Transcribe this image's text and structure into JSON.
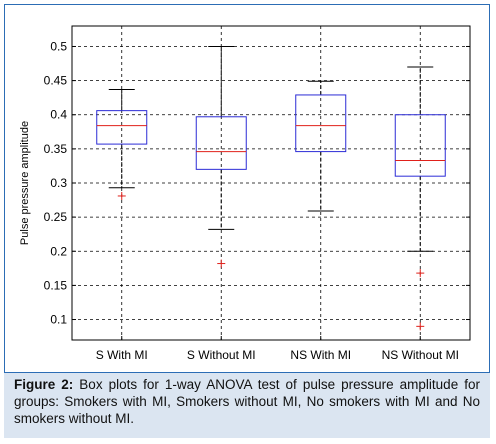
{
  "chart_data": {
    "type": "boxplot",
    "ylabel": "Pulse pressure amplitude",
    "ylim": [
      0.07,
      0.53
    ],
    "yticks": [
      "0.1",
      "0.15",
      "0.2",
      "0.25",
      "0.3",
      "0.35",
      "0.4",
      "0.45",
      "0.5"
    ],
    "ytick_values": [
      0.1,
      0.15,
      0.2,
      0.25,
      0.3,
      0.35,
      0.4,
      0.45,
      0.5
    ],
    "grid": true,
    "categories": [
      "S With MI",
      "S Without MI",
      "NS With MI",
      "NS Without MI"
    ],
    "boxes": [
      {
        "whisker_low": 0.293,
        "q1": 0.357,
        "median": 0.384,
        "q3": 0.406,
        "whisker_high": 0.437,
        "outliers": [
          0.281
        ]
      },
      {
        "whisker_low": 0.232,
        "q1": 0.32,
        "median": 0.346,
        "q3": 0.397,
        "whisker_high": 0.5,
        "outliers": [
          0.182
        ]
      },
      {
        "whisker_low": 0.259,
        "q1": 0.346,
        "median": 0.384,
        "q3": 0.429,
        "whisker_high": 0.449,
        "outliers": []
      },
      {
        "whisker_low": 0.2,
        "q1": 0.31,
        "median": 0.333,
        "q3": 0.4,
        "whisker_high": 0.47,
        "outliers": [
          0.168,
          0.09
        ]
      }
    ],
    "colors": {
      "box": "#2b2bd6",
      "median": "#e0201a",
      "whisker": "#000000",
      "outlier": "#e0201a",
      "grid": "#000000"
    }
  },
  "caption": {
    "label": "Figure 2:",
    "text": " Box plots for 1-way ANOVA test of pulse pressure amplitude for groups: Smokers with MI, Smokers without MI, No smokers with MI and No smokers without MI."
  }
}
